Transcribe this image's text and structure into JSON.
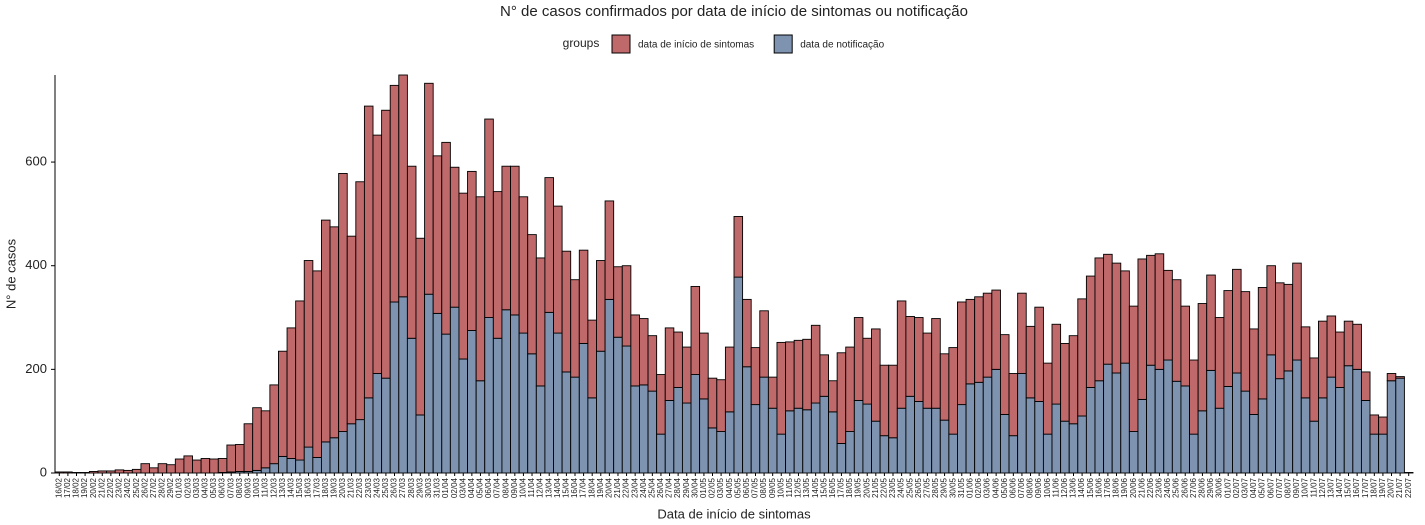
{
  "chart_data": {
    "type": "stacked_bar",
    "title": "N° de casos confirmados por data de início de sintomas ou notificação",
    "legend_title": "groups",
    "x_label": "Data de início de sintomas",
    "y_label": "N° de casos",
    "ylim": [
      0,
      768
    ],
    "yticks": [
      0,
      200,
      400,
      600
    ],
    "grid": false,
    "legend_position": "top",
    "categories": [
      "16/02",
      "17/02",
      "18/02",
      "19/02",
      "20/02",
      "21/02",
      "22/02",
      "23/02",
      "24/02",
      "25/02",
      "26/02",
      "27/02",
      "28/02",
      "29/02",
      "01/03",
      "02/03",
      "03/03",
      "04/03",
      "05/03",
      "06/03",
      "07/03",
      "08/03",
      "09/03",
      "10/03",
      "11/03",
      "12/03",
      "13/03",
      "14/03",
      "15/03",
      "16/03",
      "17/03",
      "18/03",
      "19/03",
      "20/03",
      "21/03",
      "22/03",
      "23/03",
      "24/03",
      "25/03",
      "26/03",
      "27/03",
      "28/03",
      "29/03",
      "30/03",
      "31/03",
      "01/04",
      "02/04",
      "03/04",
      "04/04",
      "05/04",
      "06/04",
      "07/04",
      "08/04",
      "09/04",
      "10/04",
      "11/04",
      "12/04",
      "13/04",
      "14/04",
      "15/04",
      "16/04",
      "17/04",
      "18/04",
      "19/04",
      "20/04",
      "21/04",
      "22/04",
      "23/04",
      "24/04",
      "25/04",
      "26/04",
      "27/04",
      "28/04",
      "29/04",
      "30/04",
      "01/05",
      "02/05",
      "03/05",
      "04/05",
      "05/05",
      "06/05",
      "07/05",
      "08/05",
      "09/05",
      "10/05",
      "11/05",
      "12/05",
      "13/05",
      "14/05",
      "15/05",
      "16/05",
      "17/05",
      "18/05",
      "19/05",
      "20/05",
      "21/05",
      "22/05",
      "23/05",
      "24/05",
      "25/05",
      "26/05",
      "27/05",
      "28/05",
      "29/05",
      "30/05",
      "31/05",
      "01/06",
      "02/06",
      "03/06",
      "04/06",
      "05/06",
      "06/06",
      "07/06",
      "08/06",
      "09/06",
      "10/06",
      "11/06",
      "12/06",
      "13/06",
      "14/06",
      "15/06",
      "16/06",
      "17/06",
      "18/06",
      "19/06",
      "20/06",
      "21/06",
      "22/06",
      "23/06",
      "24/06",
      "25/06",
      "26/06",
      "27/06",
      "28/06",
      "29/06",
      "30/06",
      "01/07",
      "02/07",
      "03/07",
      "04/07",
      "05/07",
      "06/07",
      "07/07",
      "08/07",
      "09/07",
      "10/07",
      "11/07",
      "12/07",
      "13/07",
      "14/07",
      "15/07",
      "16/07",
      "17/07",
      "18/07",
      "19/07",
      "20/07",
      "21/07",
      "22/07"
    ],
    "series": [
      {
        "name": "data de início de sintomas",
        "color": "#c0696b",
        "values": [
          2,
          2,
          1,
          1,
          3,
          4,
          4,
          6,
          5,
          7,
          18,
          10,
          18,
          16,
          27,
          33,
          25,
          28,
          27,
          27,
          52,
          52,
          92,
          121,
          110,
          152,
          203,
          252,
          307,
          360,
          360,
          428,
          407,
          498,
          362,
          459,
          563,
          460,
          517,
          418,
          428,
          332,
          341,
          407,
          304,
          370,
          270,
          320,
          307,
          355,
          383,
          283,
          277,
          287,
          263,
          230,
          247,
          260,
          245,
          233,
          188,
          180,
          150,
          175,
          190,
          136,
          155,
          137,
          128,
          107,
          115,
          140,
          107,
          108,
          170,
          127,
          96,
          100,
          125,
          117,
          130,
          110,
          128,
          60,
          177,
          133,
          131,
          136,
          150,
          80,
          60,
          175,
          163,
          160,
          127,
          178,
          136,
          140,
          207,
          154,
          162,
          145,
          173,
          128,
          167,
          198,
          163,
          165,
          162,
          153,
          154,
          120,
          155,
          138,
          182,
          137,
          154,
          150,
          170,
          226,
          215,
          237,
          212,
          212,
          178,
          242,
          271,
          212,
          223,
          173,
          196,
          154,
          143,
          207,
          184,
          175,
          185,
          200,
          192,
          165,
          215,
          172,
          185,
          167,
          187,
          137,
          122,
          148,
          118,
          107,
          86,
          87,
          55,
          37,
          33,
          14,
          3,
          1
        ]
      },
      {
        "name": "data de notificação",
        "color": "#7d93b0",
        "values": [
          0,
          0,
          0,
          0,
          0,
          0,
          0,
          0,
          0,
          0,
          0,
          0,
          0,
          0,
          0,
          0,
          0,
          0,
          0,
          1,
          2,
          3,
          3,
          5,
          10,
          18,
          32,
          28,
          25,
          50,
          30,
          60,
          68,
          80,
          95,
          103,
          145,
          192,
          183,
          330,
          340,
          260,
          112,
          345,
          308,
          268,
          320,
          220,
          275,
          178,
          300,
          260,
          315,
          305,
          270,
          230,
          168,
          310,
          270,
          195,
          185,
          250,
          145,
          235,
          335,
          262,
          245,
          168,
          170,
          158,
          75,
          140,
          165,
          135,
          190,
          143,
          87,
          80,
          118,
          378,
          205,
          132,
          185,
          125,
          75,
          120,
          125,
          122,
          135,
          148,
          118,
          57,
          80,
          140,
          133,
          100,
          72,
          68,
          125,
          148,
          138,
          125,
          125,
          102,
          75,
          132,
          172,
          175,
          185,
          200,
          113,
          72,
          192,
          145,
          138,
          75,
          133,
          100,
          95,
          110,
          165,
          178,
          210,
          193,
          212,
          80,
          142,
          208,
          200,
          218,
          177,
          168,
          75,
          120,
          198,
          125,
          167,
          193,
          158,
          113,
          143,
          228,
          182,
          197,
          218,
          145,
          100,
          145,
          185,
          165,
          207,
          200,
          140,
          75,
          75,
          178,
          183,
          0
        ]
      }
    ]
  }
}
